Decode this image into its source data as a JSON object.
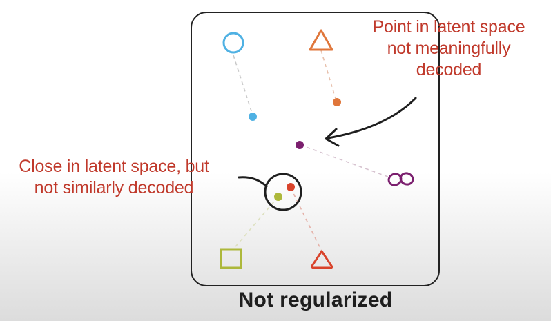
{
  "annotations": {
    "top_right": [
      "Point in latent space",
      "not meaningfully",
      "decoded"
    ],
    "left": [
      "Close in latent space, but",
      "not similarly decoded"
    ]
  },
  "caption": "Not regularized",
  "colors": {
    "blue": "#4fb1e3",
    "orange": "#e0763a",
    "purple": "#7b1f6e",
    "red": "#d9432b",
    "olive": "#adb83b",
    "annotation_text": "#c0392b",
    "frame": "#222222",
    "arrow": "#1e1e1e"
  },
  "shapes": [
    {
      "name": "blue-circle",
      "shape": "circle",
      "color": "blue"
    },
    {
      "name": "orange-triangle",
      "shape": "triangle",
      "color": "orange"
    },
    {
      "name": "purple-knot",
      "shape": "knot",
      "color": "purple"
    },
    {
      "name": "olive-square",
      "shape": "square",
      "color": "olive"
    },
    {
      "name": "red-triangle",
      "shape": "triangle",
      "color": "red"
    }
  ]
}
